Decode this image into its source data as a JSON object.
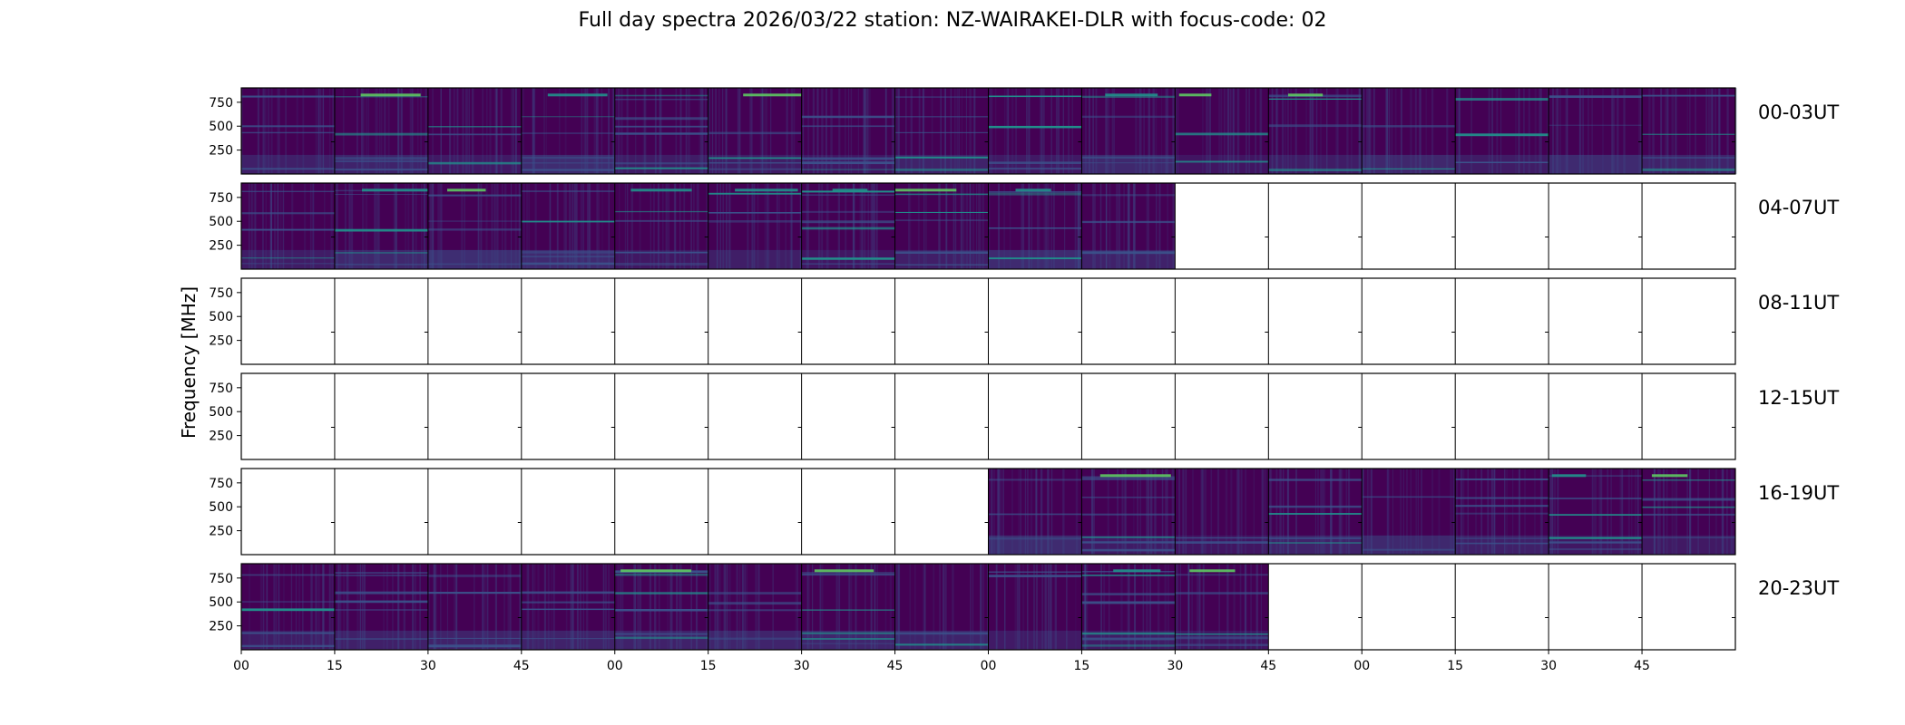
{
  "chart_data": {
    "type": "heatmap",
    "title": "Full day spectra 2026/03/22 station: NZ-WAIRAKEI-DLR with focus-code: 02",
    "ylabel": "Frequency [MHz]",
    "xlabel": "",
    "y_ticks": [
      "250",
      "500",
      "750"
    ],
    "x_ticks": [
      "00",
      "15",
      "30",
      "45",
      "00",
      "15",
      "30",
      "45",
      "00",
      "15",
      "30",
      "45",
      "00",
      "15",
      "30",
      "45"
    ],
    "colormap": [
      "#440154",
      "#3b528b",
      "#21918c",
      "#5ec962",
      "#fde725"
    ],
    "rows": [
      {
        "label": "00-03UT",
        "filled": [
          1,
          1,
          1,
          1,
          1,
          1,
          1,
          1,
          1,
          1,
          1,
          1,
          1,
          1,
          1,
          1
        ]
      },
      {
        "label": "04-07UT",
        "filled": [
          1,
          1,
          1,
          1,
          1,
          1,
          1,
          1,
          1,
          1,
          0,
          0,
          0,
          0,
          0,
          0
        ]
      },
      {
        "label": "08-11UT",
        "filled": [
          0,
          0,
          0,
          0,
          0,
          0,
          0,
          0,
          0,
          0,
          0,
          0,
          0,
          0,
          0,
          0
        ]
      },
      {
        "label": "12-15UT",
        "filled": [
          0,
          0,
          0,
          0,
          0,
          0,
          0,
          0,
          0,
          0,
          0,
          0,
          0,
          0,
          0,
          0
        ]
      },
      {
        "label": "16-19UT",
        "filled": [
          0,
          0,
          0,
          0,
          0,
          0,
          0,
          0,
          1,
          1,
          1,
          1,
          1,
          1,
          1,
          1
        ]
      },
      {
        "label": "20-23UT",
        "filled": [
          1,
          1,
          1,
          1,
          1,
          1,
          1,
          1,
          1,
          1,
          1,
          0,
          0,
          0,
          0,
          0
        ]
      }
    ]
  }
}
